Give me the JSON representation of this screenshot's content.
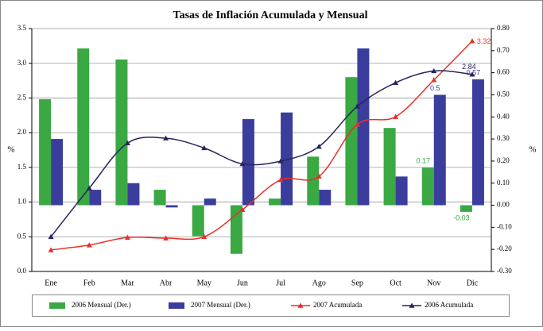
{
  "chart_data": {
    "type": "bar-line",
    "title": "Tasas de Inflación Acumulada y Mensual",
    "ylabel": "%",
    "y2label": "%",
    "categories": [
      "Ene",
      "Feb",
      "Mar",
      "Abr",
      "May",
      "Jun",
      "Jul",
      "Ago",
      "Sep",
      "Oct",
      "Nov",
      "Dic"
    ],
    "ylim": [
      0,
      3.5
    ],
    "yticks": [
      {
        "value": 0,
        "label": "0.0"
      },
      {
        "value": 0.5,
        "label": "0.5"
      },
      {
        "value": 1,
        "label": "1.0"
      },
      {
        "value": 1.5,
        "label": "1.5"
      },
      {
        "value": 2,
        "label": "2.0"
      },
      {
        "value": 2.5,
        "label": "2.5"
      },
      {
        "value": 3,
        "label": "3.0"
      },
      {
        "value": 3.5,
        "label": "3.5"
      }
    ],
    "y2lim": [
      -0.3,
      0.8
    ],
    "y2ticks": [
      {
        "value": -0.3,
        "label": "-0.30"
      },
      {
        "value": -0.2,
        "label": "-0.20"
      },
      {
        "value": -0.1,
        "label": "-0.10"
      },
      {
        "value": 0,
        "label": "0.00"
      },
      {
        "value": 0.1,
        "label": "0.10"
      },
      {
        "value": 0.2,
        "label": "0.20"
      },
      {
        "value": 0.3,
        "label": "0.30"
      },
      {
        "value": 0.4,
        "label": "0.40"
      },
      {
        "value": 0.5,
        "label": "0.50"
      },
      {
        "value": 0.6,
        "label": "0.60"
      },
      {
        "value": 0.7,
        "label": "0.70"
      },
      {
        "value": 0.8,
        "label": "0.80"
      }
    ],
    "grid": true,
    "series": [
      {
        "name": "2006 Mensual (Der.)",
        "kind": "bar",
        "axis": "y2",
        "color": "#3aa843",
        "values": [
          0.48,
          0.71,
          0.66,
          0.07,
          -0.14,
          -0.22,
          0.03,
          0.22,
          0.58,
          0.35,
          0.17,
          -0.03
        ],
        "value_labels": [
          null,
          null,
          null,
          null,
          null,
          null,
          null,
          null,
          null,
          null,
          "0.17",
          "-0.03"
        ]
      },
      {
        "name": "2007 Mensual (Der.)",
        "kind": "bar",
        "axis": "y2",
        "color": "#3a3d9c",
        "values": [
          0.3,
          0.07,
          0.1,
          -0.01,
          0.03,
          0.39,
          0.42,
          0.07,
          0.71,
          0.13,
          0.5,
          0.57
        ],
        "value_labels": [
          null,
          null,
          null,
          null,
          null,
          null,
          null,
          null,
          null,
          null,
          "0.5",
          "0.57"
        ]
      },
      {
        "name": "2007 Acumulada",
        "kind": "line",
        "color": "#e8302a",
        "values": [
          0.31,
          0.38,
          0.49,
          0.48,
          0.5,
          0.89,
          1.32,
          1.37,
          2.12,
          2.23,
          2.76,
          3.32
        ],
        "value_labels": [
          null,
          null,
          null,
          null,
          null,
          null,
          null,
          null,
          null,
          null,
          null,
          "3.32"
        ]
      },
      {
        "name": "2006 Acumulada",
        "kind": "line",
        "color": "#27255e",
        "values": [
          0.5,
          1.2,
          1.85,
          1.92,
          1.78,
          1.55,
          1.59,
          1.8,
          2.38,
          2.72,
          2.89,
          2.84
        ],
        "value_labels": [
          null,
          null,
          null,
          null,
          null,
          null,
          null,
          null,
          null,
          null,
          null,
          "2.84"
        ]
      }
    ]
  }
}
